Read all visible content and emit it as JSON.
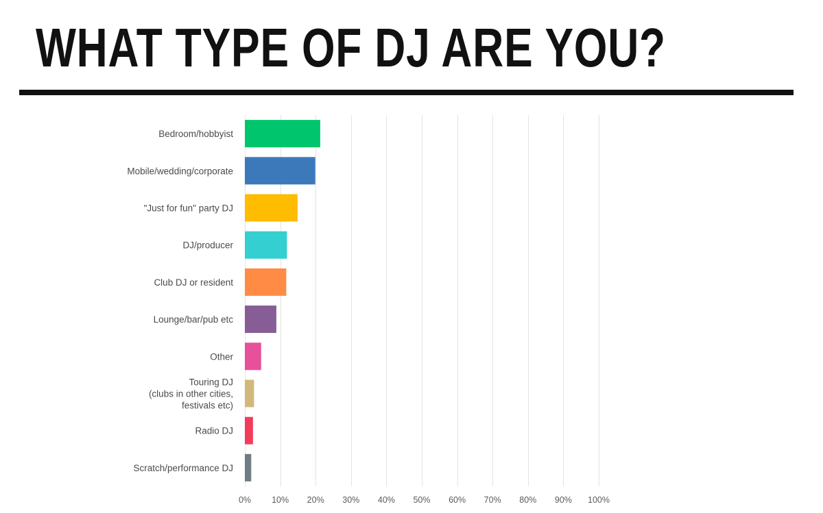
{
  "chart_data": {
    "type": "bar",
    "orientation": "horizontal",
    "title": "WHAT TYPE OF DJ ARE YOU?",
    "categories": [
      [
        "Bedroom/hobbyist"
      ],
      [
        "Mobile/wedding/corporate"
      ],
      [
        "\"Just for fun\" party DJ"
      ],
      [
        "DJ/producer"
      ],
      [
        "Club DJ or resident"
      ],
      [
        "Lounge/bar/pub etc"
      ],
      [
        "Other"
      ],
      [
        "Touring DJ",
        "(clubs in other cities,",
        "festivals etc)"
      ],
      [
        "Radio DJ"
      ],
      [
        "Scratch/performance DJ"
      ]
    ],
    "values": [
      21.3,
      19.9,
      14.9,
      11.9,
      11.7,
      8.9,
      4.6,
      2.6,
      2.3,
      1.8
    ],
    "colors": [
      "#00c56c",
      "#3b79bb",
      "#ffbc00",
      "#34cfd0",
      "#ff8b45",
      "#865e95",
      "#e7509a",
      "#d1b97b",
      "#f23c5a",
      "#6e7d84"
    ],
    "xlim": [
      0,
      100
    ],
    "xticks": [
      0,
      10,
      20,
      30,
      40,
      50,
      60,
      70,
      80,
      90,
      100
    ],
    "xtick_labels": [
      "0%",
      "10%",
      "20%",
      "30%",
      "40%",
      "50%",
      "60%",
      "70%",
      "80%",
      "90%",
      "100%"
    ],
    "grid": true,
    "gridline_color": "#e3e3e3",
    "xlabel": "",
    "ylabel": ""
  }
}
